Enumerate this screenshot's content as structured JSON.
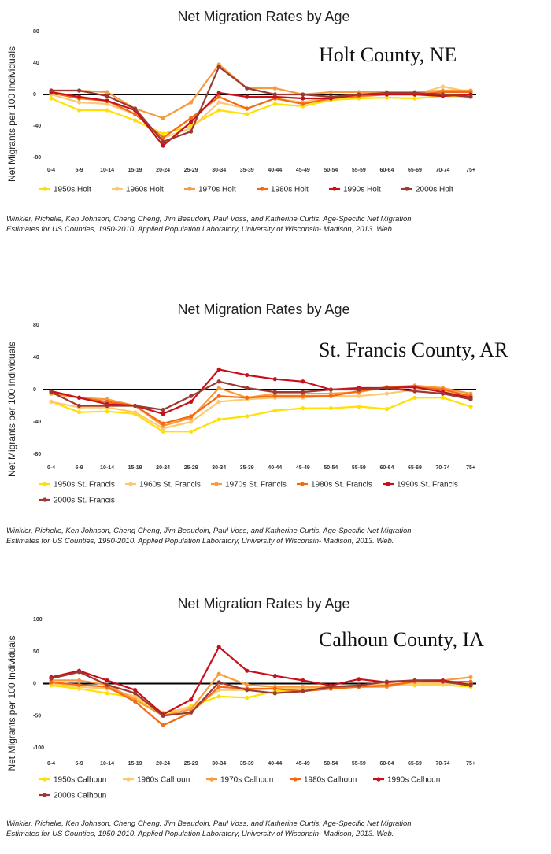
{
  "colors": {
    "axis": "#000000",
    "series": [
      "#FFE000",
      "#FFC870",
      "#F79B3E",
      "#F26A12",
      "#C8101A",
      "#9A3A32"
    ]
  },
  "chart_data": [
    {
      "type": "line",
      "title": "Net Migration Rates by Age",
      "annotation": "Holt County, NE",
      "ylabel": "Net Migrants per 100 Individuals",
      "ylim": [
        -80,
        80
      ],
      "yticks": [
        80,
        40,
        0,
        -40,
        -80
      ],
      "categories": [
        "0-4",
        "5-9",
        "10-14",
        "15-19",
        "20-24",
        "25-29",
        "30-34",
        "35-39",
        "40-44",
        "45-49",
        "50-54",
        "55-59",
        "60-64",
        "65-69",
        "70-74",
        "75+"
      ],
      "series": [
        {
          "name": "1950s Holt",
          "values": [
            -5,
            -20,
            -20,
            -33,
            -50,
            -40,
            -20,
            -25,
            -12,
            -15,
            -7,
            -5,
            -4,
            -5,
            -2,
            -3
          ]
        },
        {
          "name": "1960s Holt",
          "values": [
            0,
            -10,
            -12,
            -25,
            -55,
            -43,
            -10,
            -18,
            -5,
            -10,
            -3,
            -3,
            0,
            0,
            10,
            3
          ]
        },
        {
          "name": "1970s Holt",
          "values": [
            5,
            5,
            3,
            -18,
            -30,
            -10,
            38,
            8,
            8,
            0,
            3,
            3,
            3,
            3,
            5,
            5
          ]
        },
        {
          "name": "1980s Holt",
          "values": [
            2,
            -5,
            -8,
            -25,
            -55,
            -30,
            -3,
            -18,
            -5,
            -12,
            -5,
            -2,
            0,
            0,
            3,
            3
          ]
        },
        {
          "name": "1990s Holt",
          "values": [
            3,
            -3,
            -8,
            -20,
            -65,
            -35,
            2,
            -3,
            -3,
            -5,
            -5,
            0,
            0,
            0,
            -2,
            0
          ]
        },
        {
          "name": "2000s Holt",
          "values": [
            5,
            5,
            -2,
            -18,
            -60,
            -47,
            35,
            8,
            0,
            0,
            -3,
            0,
            2,
            2,
            0,
            -3
          ]
        }
      ],
      "citation": [
        "Winkler, Richelle, Ken Johnson, Cheng Cheng, Jim Beaudoin, Paul Voss, and Katherine Curtis. Age-Specific Net Migration",
        "Estimates for US Counties, 1950-2010. Applied Population Laboratory, University of Wisconsin- Madison, 2013. Web."
      ]
    },
    {
      "type": "line",
      "title": "Net Migration Rates by Age",
      "annotation": "St. Francis County, AR",
      "ylabel": "Net Migrants per 100 Individuals",
      "ylim": [
        -80,
        80
      ],
      "yticks": [
        80,
        40,
        0,
        -40,
        -80
      ],
      "categories": [
        "0-4",
        "5-9",
        "10-14",
        "15-19",
        "20-24",
        "25-29",
        "30-34",
        "35-39",
        "40-44",
        "45-49",
        "50-54",
        "55-59",
        "60-64",
        "65-69",
        "70-74",
        "75+"
      ],
      "series": [
        {
          "name": "1950s St. Francis",
          "values": [
            -15,
            -28,
            -27,
            -30,
            -52,
            -52,
            -37,
            -33,
            -26,
            -23,
            -23,
            -21,
            -24,
            -10,
            -10,
            -21
          ]
        },
        {
          "name": "1960s St. Francis",
          "values": [
            -15,
            -22,
            -22,
            -28,
            -48,
            -40,
            -15,
            -12,
            -10,
            -10,
            -8,
            -8,
            -5,
            0,
            0,
            -8
          ]
        },
        {
          "name": "1970s St. Francis",
          "values": [
            -5,
            -10,
            -12,
            -20,
            -45,
            -35,
            2,
            -10,
            -5,
            -5,
            -5,
            -3,
            3,
            5,
            2,
            -5
          ]
        },
        {
          "name": "1980s St. Francis",
          "values": [
            -3,
            -10,
            -15,
            -20,
            -42,
            -33,
            -8,
            -10,
            -8,
            -8,
            -8,
            -2,
            3,
            3,
            0,
            -8
          ]
        },
        {
          "name": "1990s St. Francis",
          "values": [
            -2,
            -10,
            -18,
            -20,
            -30,
            -15,
            25,
            18,
            13,
            10,
            0,
            2,
            2,
            3,
            -3,
            -10
          ]
        },
        {
          "name": "2000s St. Francis",
          "values": [
            -3,
            -20,
            -20,
            -20,
            -25,
            -8,
            10,
            2,
            -3,
            -3,
            0,
            0,
            2,
            -2,
            -5,
            -12
          ]
        }
      ],
      "citation": [
        "Winkler, Richelle, Ken Johnson, Cheng Cheng, Jim Beaudoin, Paul Voss, and Katherine Curtis. Age-Specific Net Migration",
        "Estimates for US Counties, 1950-2010. Applied Population Laboratory, University of Wisconsin- Madison, 2013. Web."
      ]
    },
    {
      "type": "line",
      "title": "Net Migration Rates by Age",
      "annotation": "Calhoun County, IA",
      "ylabel": "Net Migrants per 100 Individuals",
      "ylim": [
        -100,
        100
      ],
      "yticks": [
        100,
        50,
        0,
        -50,
        -100
      ],
      "categories": [
        "0-4",
        "5-9",
        "10-14",
        "15-19",
        "20-24",
        "25-29",
        "30-34",
        "35-39",
        "40-44",
        "45-49",
        "50-54",
        "55-59",
        "60-64",
        "65-69",
        "70-74",
        "75+"
      ],
      "series": [
        {
          "name": "1950s Calhoun",
          "values": [
            -3,
            -8,
            -15,
            -22,
            -50,
            -35,
            -20,
            -22,
            -12,
            -10,
            -8,
            -5,
            -3,
            -3,
            -2,
            -5
          ]
        },
        {
          "name": "1960s Calhoun",
          "values": [
            0,
            -5,
            -8,
            -20,
            -45,
            -38,
            -10,
            -10,
            -8,
            -8,
            -5,
            -3,
            0,
            0,
            0,
            0
          ]
        },
        {
          "name": "1970s Calhoun",
          "values": [
            5,
            5,
            -2,
            -25,
            -50,
            -40,
            15,
            -2,
            -5,
            -5,
            -5,
            -5,
            -5,
            3,
            5,
            10
          ]
        },
        {
          "name": "1980s Calhoun",
          "values": [
            2,
            -2,
            -5,
            -28,
            -65,
            -45,
            -5,
            -8,
            -8,
            -12,
            -8,
            -5,
            -3,
            3,
            3,
            3
          ]
        },
        {
          "name": "1990s Calhoun",
          "values": [
            10,
            20,
            5,
            -10,
            -48,
            -25,
            57,
            20,
            12,
            5,
            -3,
            7,
            2,
            5,
            5,
            -2
          ]
        },
        {
          "name": "2000s Calhoun",
          "values": [
            8,
            18,
            -2,
            -15,
            -50,
            -45,
            2,
            -10,
            -15,
            -12,
            -5,
            -3,
            3,
            5,
            3,
            -3
          ]
        }
      ],
      "citation": [
        "Winkler, Richelle, Ken Johnson, Cheng Cheng, Jim Beaudoin, Paul Voss, and Katherine Curtis. Age-Specific Net Migration",
        "Estimates for US Counties, 1950-2010. Applied Population Laboratory, University of Wisconsin- Madison, 2013. Web."
      ]
    }
  ]
}
